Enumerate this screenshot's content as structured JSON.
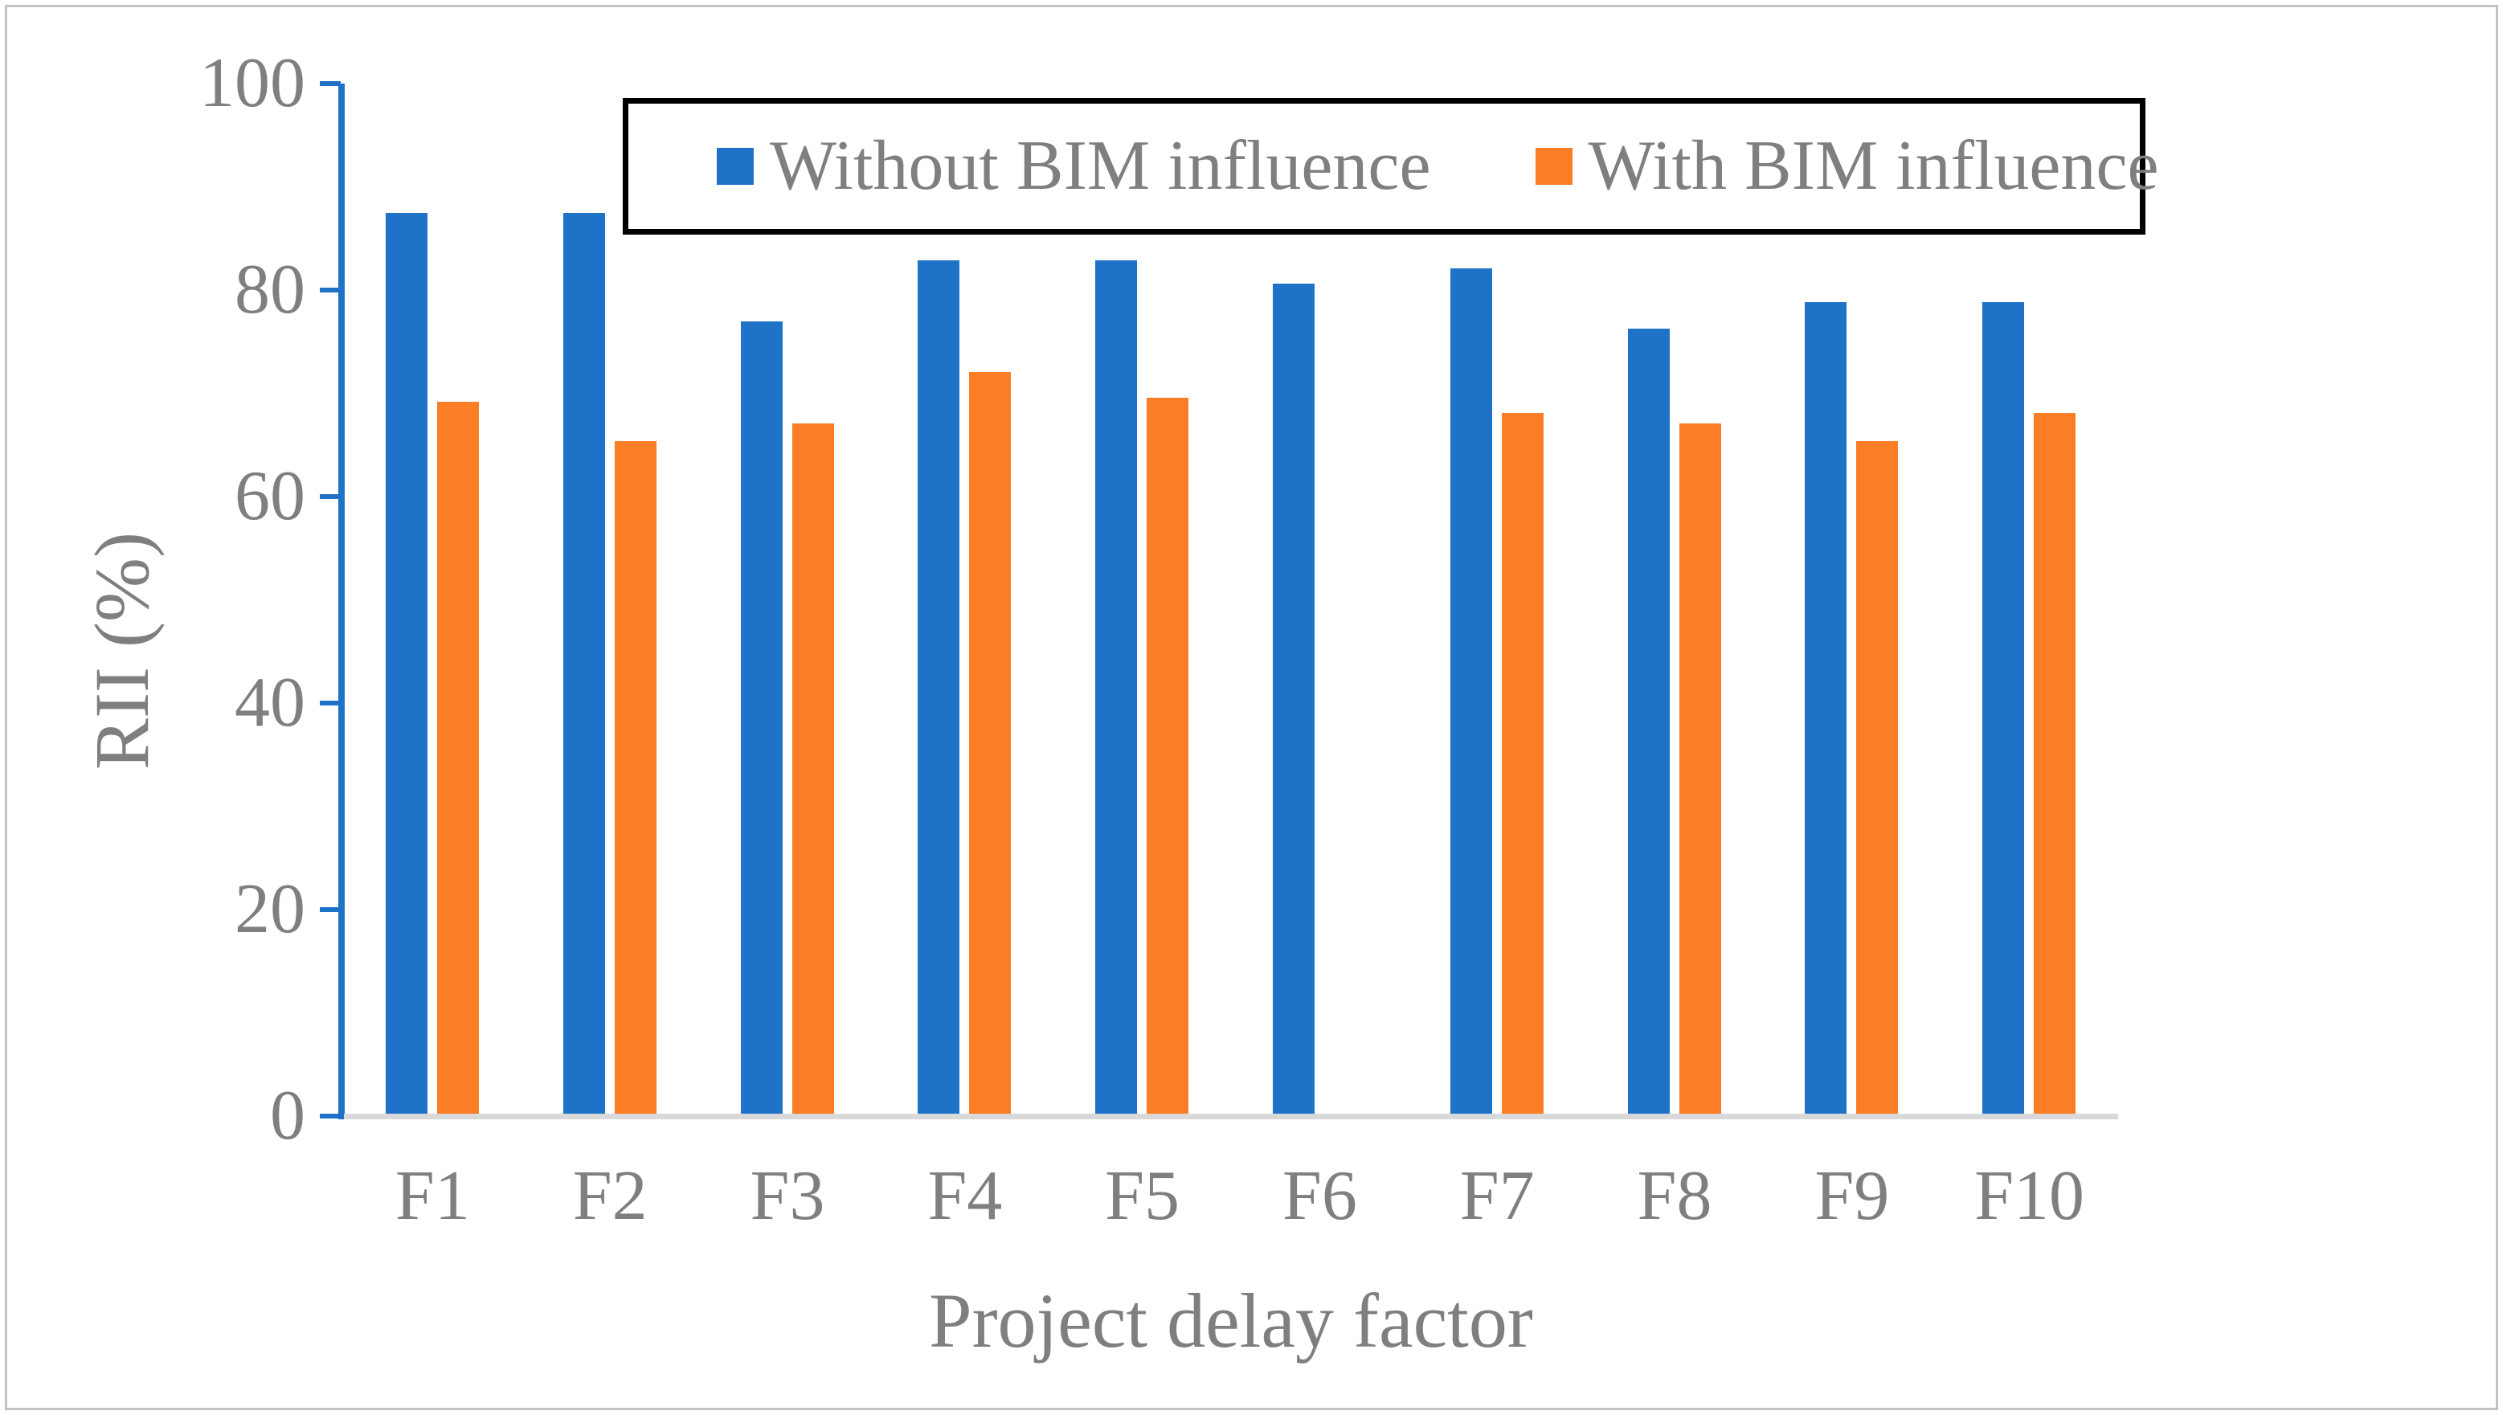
{
  "figure": {
    "background": "#ffffff",
    "border_color": "#c2c2c2",
    "axis_color": "#1e73c8",
    "baseline_color": "#d9d9d9",
    "text_color": "#7f7f7f",
    "legend_border_color": "#000000"
  },
  "chart_data": {
    "type": "bar",
    "title": "",
    "categories": [
      "F1",
      "F2",
      "F3",
      "F4",
      "F5",
      "F6",
      "F7",
      "F8",
      "F9",
      "F10"
    ],
    "series": [
      {
        "name": "Without BIM influence",
        "color": "#1e73c8",
        "values": [
          87.5,
          87.5,
          77.0,
          82.9,
          82.9,
          80.6,
          82.1,
          76.3,
          78.8,
          78.8
        ]
      },
      {
        "name": "With BIM influence",
        "color": "#fb7d26",
        "values": [
          69.2,
          65.4,
          67.1,
          72.1,
          69.6,
          null,
          68.1,
          67.1,
          65.4,
          68.1
        ]
      }
    ],
    "xlabel": "Project delay factor",
    "ylabel": "RII (%)",
    "ylim": [
      0,
      100
    ],
    "yticks": [
      0,
      20,
      40,
      60,
      80,
      100
    ],
    "legend_position": "top-inside",
    "grid": false
  }
}
